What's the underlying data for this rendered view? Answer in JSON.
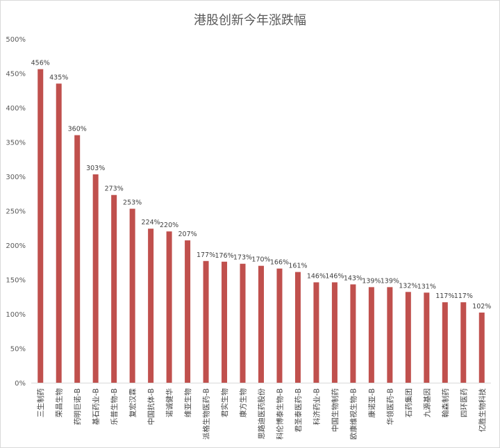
{
  "chart_data": {
    "type": "bar",
    "title": "港股创新今年涨跌幅",
    "xlabel": "",
    "ylabel": "",
    "ylim": [
      0,
      500
    ],
    "ytick_step": 50,
    "grid": false,
    "legend": "none",
    "bar_color": "#c0504d",
    "categories": [
      "三生制药",
      "荣昌生物",
      "药明巨诺-B",
      "基石药业-B",
      "乐普生物-B",
      "复宏汉霖",
      "中国抗体-B",
      "诺诚健华",
      "维亚生物",
      "派格生物医药-B",
      "君实生物",
      "康方生物",
      "思路迪医药股份",
      "科伦博泰生物-B",
      "君圣泰医药-B",
      "科济药业-B",
      "中国生物制药",
      "欧康维视生物-B",
      "康诺亚-B",
      "华领医药-B",
      "石药集团",
      "九源基因",
      "翰森制药",
      "四环医药",
      "亿胜生物科技"
    ],
    "values": [
      456,
      435,
      360,
      303,
      273,
      253,
      224,
      220,
      207,
      177,
      176,
      173,
      170,
      166,
      161,
      146,
      146,
      143,
      139,
      139,
      132,
      131,
      117,
      117,
      102
    ],
    "data_labels": [
      "456%",
      "435%",
      "360%",
      "303%",
      "273%",
      "253%",
      "224%",
      "220%",
      "207%",
      "177%",
      "176%",
      "173%",
      "170%",
      "166%",
      "161%",
      "146%",
      "146%",
      "143%",
      "139%",
      "139%",
      "132%",
      "131%",
      "117%",
      "117%",
      "102%"
    ],
    "yticks": [
      "0%",
      "50%",
      "100%",
      "150%",
      "200%",
      "250%",
      "300%",
      "350%",
      "400%",
      "450%",
      "500%"
    ]
  }
}
